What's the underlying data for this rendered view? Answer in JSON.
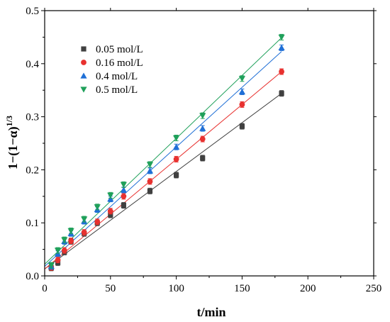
{
  "chart_data": {
    "type": "scatter",
    "xlabel": "t/min",
    "ylabel_main": "1−(1−α)",
    "ylabel_sup": "1/3",
    "xlim": [
      0,
      250
    ],
    "ylim": [
      0,
      0.5
    ],
    "x_ticks": [
      "0",
      "50",
      "100",
      "150",
      "200",
      "250"
    ],
    "y_ticks": [
      "0.0",
      "0.1",
      "0.2",
      "0.3",
      "0.4",
      "0.5"
    ],
    "grid": false,
    "legend_position": "top-left",
    "x": [
      5,
      10,
      15,
      20,
      30,
      40,
      50,
      60,
      80,
      100,
      120,
      150,
      180
    ],
    "series": [
      {
        "name": "0.05 mol/L",
        "color": "#404040",
        "marker": "square",
        "values": [
          0.015,
          0.025,
          0.045,
          0.065,
          0.08,
          0.1,
          0.115,
          0.133,
          0.16,
          0.19,
          0.222,
          0.282,
          0.344
        ],
        "fit": [
          0.013,
          0.344
        ]
      },
      {
        "name": "0.16 mol/L",
        "color": "#e8312f",
        "marker": "circle",
        "values": [
          0.016,
          0.03,
          0.048,
          0.066,
          0.082,
          0.102,
          0.122,
          0.15,
          0.178,
          0.22,
          0.258,
          0.323,
          0.385
        ],
        "fit": [
          0.013,
          0.385
        ]
      },
      {
        "name": "0.4 mol/L",
        "color": "#1f6fd6",
        "marker": "triangle-up",
        "values": [
          0.018,
          0.042,
          0.065,
          0.08,
          0.103,
          0.125,
          0.145,
          0.162,
          0.198,
          0.243,
          0.278,
          0.347,
          0.43
        ],
        "fit": [
          0.018,
          0.423
        ]
      },
      {
        "name": "0.5 mol/L",
        "color": "#1fa05a",
        "marker": "triangle-down",
        "values": [
          0.02,
          0.048,
          0.068,
          0.085,
          0.107,
          0.13,
          0.152,
          0.172,
          0.21,
          0.26,
          0.302,
          0.372,
          0.45
        ],
        "fit": [
          0.022,
          0.449
        ]
      }
    ]
  }
}
